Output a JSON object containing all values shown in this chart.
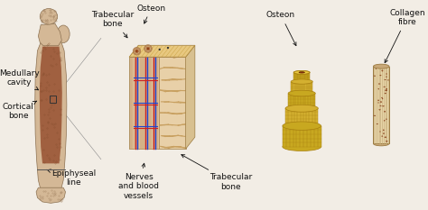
{
  "background_color": "#f2ede5",
  "labels": {
    "medullary_cavity": "Medullary\ncavity",
    "cortical_bone": "Cortical\nbone",
    "trabecular_bone_top": "Trabecular\nbone",
    "epiphyseal_line": "Epiphyseal\nline",
    "osteon_left": "Osteon",
    "nerves_blood": "Nerves\nand blood\nvessels",
    "trabecular_bone_bottom": "Trabecular\nbone",
    "osteon_right": "Osteon",
    "collagen_fibre": "Collagen\nfibre"
  },
  "bone_outer_color": "#d4b896",
  "bone_cortical_color": "#c8956a",
  "bone_marrow_color": "#a06040",
  "epiphysis_color": "#d4b896",
  "lamellar_color": "#dfc09a",
  "lamellar_stripe": "#c8a070",
  "canal_red": "#cc2222",
  "canal_blue": "#2244cc",
  "spongy_color": "#e8d0a8",
  "spongy_strut": "#c8a060",
  "osteon_gold": "#d4aa20",
  "osteon_dark": "#a88010",
  "osteon_hole": "#8b3010",
  "collagen_base": "#e8d5a8",
  "collagen_stripe": "#c8b080",
  "collagen_dot": "#a06030",
  "annotation_color": "#111111",
  "font_size": 6.5,
  "fig_width": 4.74,
  "fig_height": 2.33,
  "dpi": 100
}
